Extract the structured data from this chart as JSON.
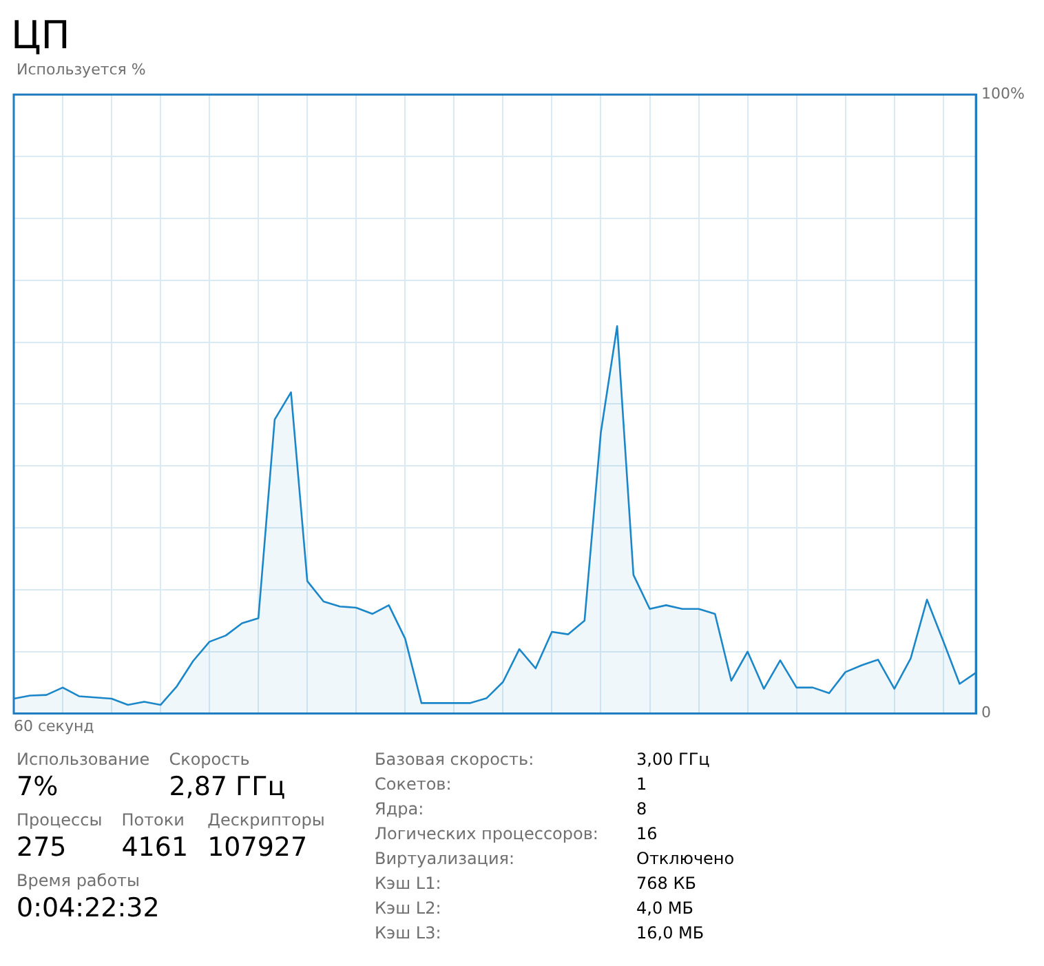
{
  "chart_data": {
    "type": "area",
    "title": "ЦП",
    "ylabel": "Используется %",
    "xlabel": "60 секунд",
    "categories": [
      null,
      null,
      null,
      null,
      null,
      null,
      null,
      null,
      null,
      null,
      null,
      null,
      null,
      null,
      null,
      null,
      null,
      null,
      null,
      null,
      null,
      null,
      null,
      null,
      null,
      null,
      null,
      null,
      null,
      null,
      null,
      null,
      null,
      null,
      null,
      null,
      null,
      null,
      null,
      null,
      null,
      null,
      null,
      null,
      null,
      null,
      null,
      null,
      null,
      null,
      null,
      null,
      null,
      null,
      null,
      null,
      null,
      null,
      null,
      null
    ],
    "series": [
      {
        "color": "#1b87c9",
        "values": [
          2.4,
          2.9,
          3.0,
          4.2,
          2.8,
          2.6,
          2.4,
          1.4,
          1.9,
          1.4,
          4.4,
          8.5,
          11.6,
          12.6,
          14.6,
          15.4,
          47.5,
          51.9,
          21.4,
          18.1,
          17.3,
          17.1,
          16.1,
          17.5,
          12.1,
          1.7,
          1.7,
          1.7,
          1.7,
          2.5,
          5.1,
          10.4,
          7.3,
          13.2,
          12.8,
          15.0,
          45.4,
          62.6,
          22.4,
          16.9,
          17.5,
          16.9,
          16.9,
          16.1,
          5.3,
          10.0,
          4.0,
          8.6,
          4.2,
          4.2,
          3.3,
          6.7,
          7.8,
          8.7,
          4.0,
          8.9,
          18.4,
          11.7,
          4.8,
          6.6
        ]
      }
    ],
    "ylim": [
      0,
      100
    ],
    "yticks": [
      0,
      {
        "value": 10,
        "label": null
      },
      {
        "value": 20,
        "label": null
      },
      {
        "value": 30,
        "label": null
      },
      {
        "value": 40,
        "label": null
      },
      {
        "value": 50,
        "label": null
      },
      {
        "value": 60,
        "label": null
      },
      {
        "value": 70,
        "label": null
      },
      {
        "value": 80,
        "label": null
      },
      {
        "value": 90,
        "label": null
      },
      {
        "value": 100,
        "label": "100%"
      }
    ],
    "grid": true,
    "annotations": [
      "Использование",
      "7%",
      "Скорость",
      "2,87 ГГц",
      "Процессы",
      "275",
      "Потоки",
      "4161",
      "Дескрипторы",
      "107927",
      "Время работы",
      "0:04:22:32",
      "Базовая скорость:",
      "3,00 ГГц",
      "Сокетов:",
      "1",
      "Ядра:",
      "8",
      "Логических процессоров:",
      "16",
      "Виртуализация:",
      "Отключено",
      "Кэш L1:",
      "768 КБ",
      "Кэш L2:",
      "4,0 МБ",
      "Кэш L3:",
      "16,0 МБ"
    ]
  }
}
